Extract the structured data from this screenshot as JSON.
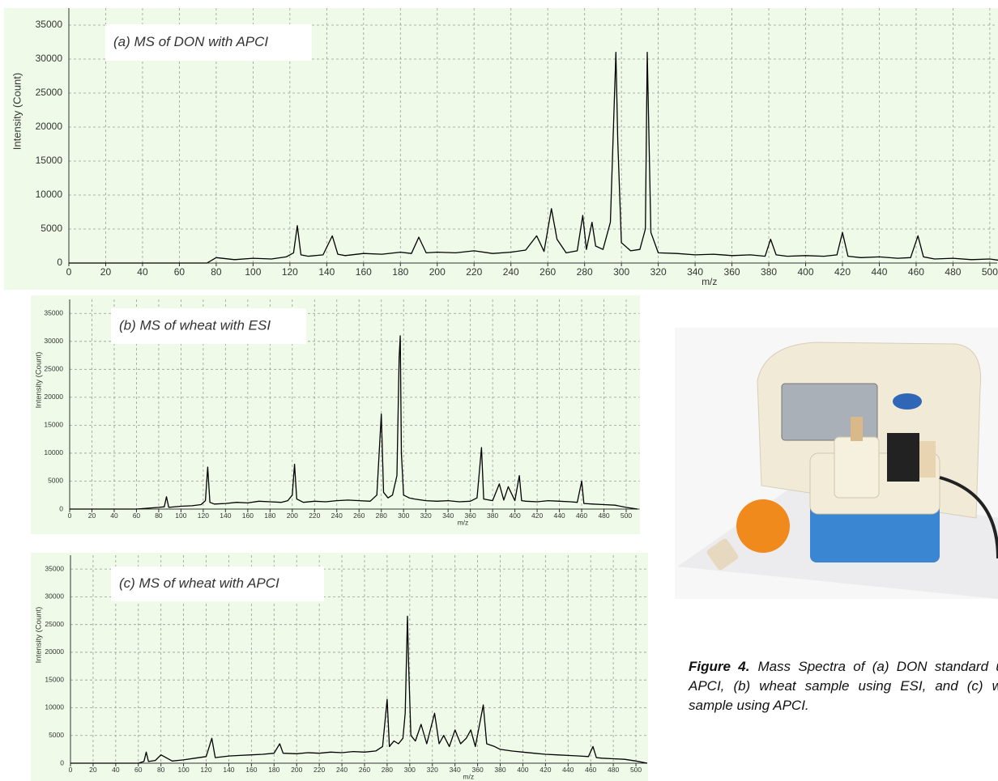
{
  "chart_data": [
    {
      "type": "line",
      "title": "(a)  MS of DON with APCI",
      "xlabel": "m/z",
      "ylabel": "Intensity (Count)",
      "color": "#000000",
      "grid": true,
      "xlim": [
        0,
        504
      ],
      "ylim": [
        0,
        37500
      ],
      "xticks": [
        0,
        20,
        40,
        60,
        80,
        100,
        120,
        140,
        160,
        180,
        200,
        220,
        240,
        260,
        280,
        300,
        320,
        340,
        360,
        380,
        400,
        420,
        440,
        460,
        480,
        500
      ],
      "yticks": [
        0,
        5000,
        10000,
        15000,
        20000,
        25000,
        30000,
        35000
      ],
      "x": [
        0,
        75,
        80,
        90,
        100,
        110,
        118,
        122,
        124,
        126,
        130,
        138,
        143,
        146,
        150,
        160,
        170,
        180,
        186,
        190,
        194,
        200,
        210,
        220,
        230,
        240,
        248,
        254,
        258,
        262,
        265,
        270,
        276,
        279,
        281,
        284,
        286,
        290,
        294,
        297,
        298,
        300,
        305,
        310,
        313,
        314,
        316,
        320,
        330,
        340,
        350,
        360,
        370,
        378,
        381,
        384,
        390,
        400,
        410,
        417,
        420,
        423,
        430,
        440,
        450,
        457,
        461,
        464,
        470,
        480,
        490,
        500,
        505
      ],
      "values": [
        0,
        0,
        800,
        500,
        700,
        600,
        900,
        1500,
        5500,
        1200,
        1000,
        1200,
        4000,
        1300,
        1100,
        1400,
        1300,
        1600,
        1400,
        3800,
        1500,
        1600,
        1500,
        1800,
        1400,
        1600,
        1900,
        4000,
        1700,
        8000,
        3500,
        1500,
        1800,
        7000,
        2000,
        6000,
        2500,
        2000,
        6000,
        31000,
        18000,
        3000,
        1800,
        2000,
        5000,
        31000,
        4500,
        1500,
        1400,
        1200,
        1300,
        1100,
        1200,
        1000,
        3500,
        1200,
        1000,
        1100,
        1000,
        1200,
        4500,
        1000,
        800,
        900,
        700,
        800,
        4000,
        900,
        600,
        700,
        500,
        600,
        400
      ]
    },
    {
      "type": "line",
      "title": "(b)  MS of wheat with ESI",
      "xlabel": "m/z",
      "ylabel": "Intensity (Count)",
      "color": "#000000",
      "grid": true,
      "xlim": [
        0,
        512
      ],
      "ylim": [
        0,
        37500
      ],
      "xticks": [
        0,
        20,
        40,
        60,
        80,
        100,
        120,
        140,
        160,
        180,
        200,
        220,
        240,
        260,
        280,
        300,
        320,
        340,
        360,
        380,
        400,
        420,
        440,
        460,
        480,
        500
      ],
      "yticks": [
        0,
        5000,
        10000,
        15000,
        20000,
        25000,
        30000,
        35000
      ],
      "x": [
        0,
        60,
        80,
        85,
        87,
        89,
        100,
        110,
        118,
        122,
        124,
        126,
        130,
        140,
        150,
        160,
        170,
        180,
        190,
        196,
        200,
        202,
        204,
        210,
        220,
        230,
        240,
        250,
        260,
        270,
        276,
        280,
        282,
        286,
        290,
        294,
        296,
        297,
        298,
        300,
        305,
        310,
        320,
        330,
        340,
        350,
        360,
        366,
        370,
        372,
        380,
        386,
        390,
        394,
        400,
        404,
        406,
        410,
        420,
        430,
        440,
        450,
        456,
        460,
        462,
        470,
        480,
        490,
        500,
        510
      ],
      "values": [
        0,
        0,
        300,
        400,
        2200,
        300,
        500,
        600,
        800,
        1500,
        7500,
        1200,
        900,
        1000,
        1200,
        1100,
        1400,
        1300,
        1200,
        1500,
        2500,
        8000,
        1800,
        1200,
        1400,
        1300,
        1500,
        1600,
        1500,
        1400,
        2500,
        17000,
        3000,
        2000,
        2500,
        6000,
        27000,
        31000,
        10000,
        2500,
        2000,
        1800,
        1500,
        1400,
        1500,
        1300,
        1400,
        2000,
        11000,
        1800,
        1500,
        4500,
        1600,
        4000,
        1500,
        6000,
        1500,
        1400,
        1300,
        1500,
        1400,
        1300,
        1200,
        5000,
        1000,
        900,
        800,
        700,
        300,
        0
      ]
    },
    {
      "type": "line",
      "title": "(c)   MS of wheat with APCI",
      "xlabel": "m/z",
      "ylabel": "Intensity (Count)",
      "color": "#000000",
      "grid": true,
      "xlim": [
        0,
        510
      ],
      "ylim": [
        0,
        37500
      ],
      "xticks": [
        0,
        20,
        40,
        60,
        80,
        100,
        120,
        140,
        160,
        180,
        200,
        220,
        240,
        260,
        280,
        300,
        320,
        340,
        360,
        380,
        400,
        420,
        440,
        460,
        480,
        500
      ],
      "yticks": [
        0,
        5000,
        10000,
        15000,
        20000,
        25000,
        30000,
        35000
      ],
      "x": [
        0,
        60,
        65,
        67,
        69,
        75,
        80,
        90,
        100,
        110,
        120,
        125,
        128,
        140,
        150,
        160,
        170,
        180,
        185,
        188,
        200,
        210,
        220,
        230,
        240,
        250,
        260,
        270,
        276,
        280,
        282,
        286,
        290,
        294,
        296,
        298,
        299,
        301,
        305,
        310,
        315,
        322,
        326,
        330,
        335,
        340,
        345,
        350,
        354,
        358,
        365,
        368,
        375,
        380,
        390,
        400,
        410,
        420,
        430,
        440,
        450,
        458,
        462,
        465,
        470,
        480,
        490,
        500,
        510
      ],
      "values": [
        0,
        0,
        300,
        2000,
        300,
        500,
        1500,
        400,
        600,
        900,
        1200,
        4500,
        1000,
        1300,
        1400,
        1500,
        1600,
        1800,
        3500,
        1800,
        1700,
        1900,
        1800,
        2000,
        1900,
        2100,
        2000,
        2200,
        3000,
        11500,
        3000,
        4000,
        3500,
        4500,
        9000,
        26500,
        18000,
        5000,
        4000,
        7000,
        3500,
        9000,
        3500,
        5000,
        3000,
        6000,
        3500,
        4500,
        6000,
        3000,
        10500,
        3500,
        3000,
        2500,
        2200,
        2000,
        1800,
        1600,
        1500,
        1400,
        1300,
        1200,
        3000,
        1000,
        900,
        800,
        700,
        400,
        0
      ]
    }
  ],
  "caption": {
    "label": "Figure 4.",
    "text": "Mass Spectra of (a) DON standard using APCI, (b) wheat sample using ESI, and (c) wheat sample using APCI."
  }
}
